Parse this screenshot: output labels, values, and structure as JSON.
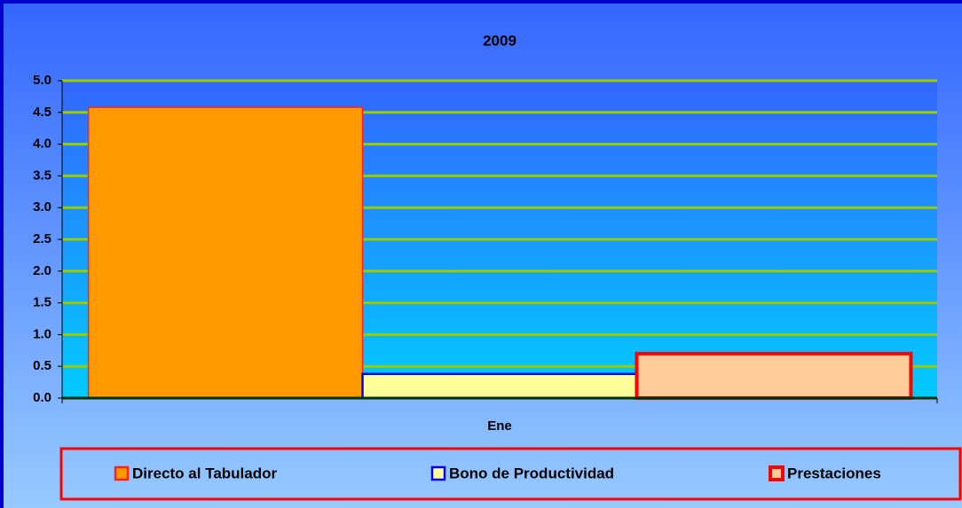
{
  "chart_data": {
    "type": "bar",
    "title": "2009",
    "categories": [
      "Ene"
    ],
    "series": [
      {
        "name": "Directo al Tabulador",
        "color": "#ff9900",
        "edgecolor": "#ff2020",
        "values": [
          4.58
        ]
      },
      {
        "name": "Bono de Productividad",
        "color": "#ffff99",
        "edgecolor": "#0000ff",
        "values": [
          0.38
        ]
      },
      {
        "name": "Prestaciones",
        "color": "#ffcc99",
        "edgecolor": "#ff0000",
        "values": [
          0.7
        ]
      }
    ],
    "ylim": [
      0,
      5
    ],
    "yticks": [
      {
        "value": 0,
        "label": "0.0"
      },
      0.5,
      {
        "value": 1,
        "label": "1.0"
      },
      1.5,
      {
        "value": 2,
        "label": "2.0"
      },
      2.5,
      {
        "value": 3,
        "label": "3.0"
      },
      3.5,
      {
        "value": 4,
        "label": "4.0"
      },
      4.5,
      {
        "value": 5,
        "label": "5.0"
      }
    ],
    "grid": true,
    "grid_color": "#99cc00"
  }
}
